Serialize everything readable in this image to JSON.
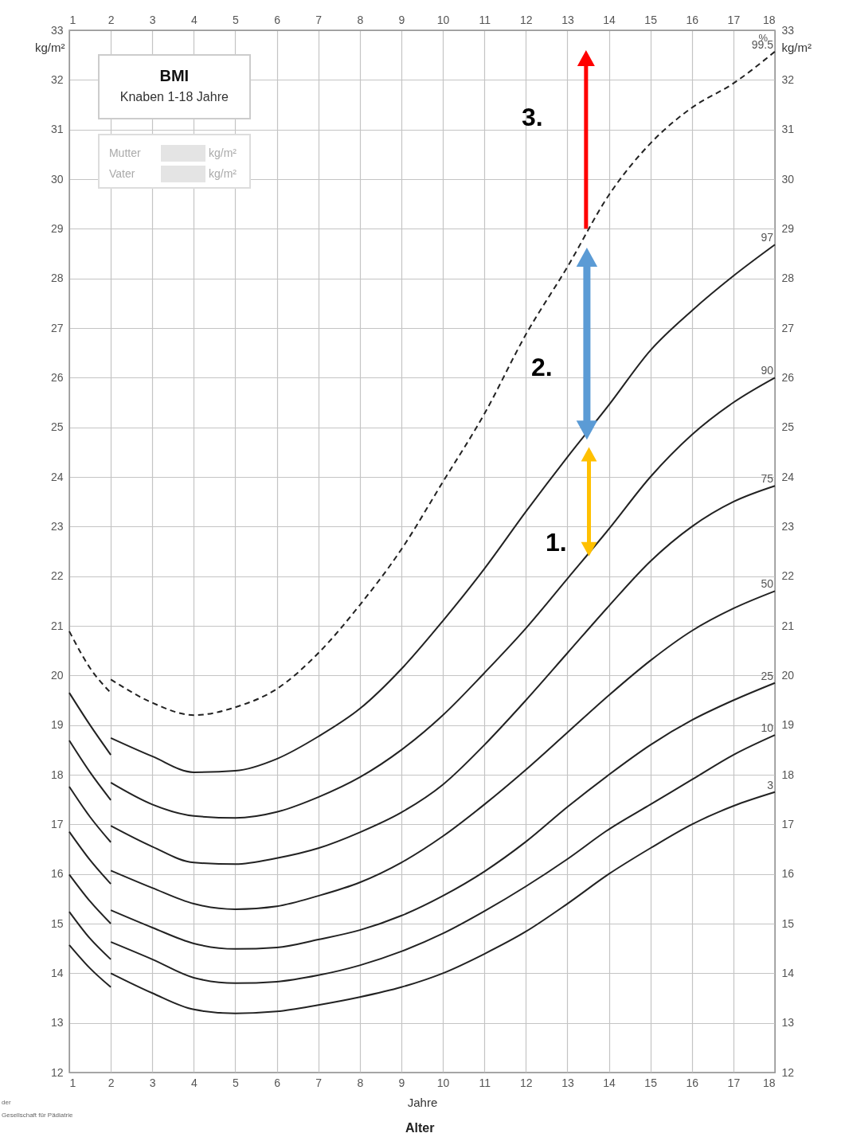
{
  "chart_data": {
    "type": "line",
    "title": "BMI",
    "subtitle": "Knaben 1-18 Jahre",
    "xlabel": "Jahre",
    "ylabel": "kg/m²",
    "y2label": "kg/m²",
    "x": [
      2,
      3,
      4,
      5,
      6,
      7,
      8,
      9,
      10,
      11,
      12,
      13,
      14,
      15,
      16,
      17,
      18
    ],
    "series": [
      {
        "name": "99.5",
        "color": "#222222",
        "line_style": "dashed",
        "values": [
          19.92,
          19.45,
          19.2,
          19.36,
          19.73,
          20.45,
          21.42,
          22.54,
          23.9,
          25.27,
          26.87,
          28.23,
          29.68,
          30.72,
          31.44,
          31.93,
          32.57
        ]
      },
      {
        "name": "97",
        "color": "#222222",
        "line_style": "solid",
        "values": [
          18.74,
          18.37,
          18.05,
          18.08,
          18.32,
          18.77,
          19.33,
          20.13,
          21.1,
          22.15,
          23.3,
          24.4,
          25.45,
          26.55,
          27.35,
          28.05,
          28.68
        ]
      },
      {
        "name": "90",
        "color": "#222222",
        "line_style": "solid",
        "values": [
          17.84,
          17.4,
          17.17,
          17.13,
          17.25,
          17.55,
          17.95,
          18.5,
          19.2,
          20.05,
          20.95,
          21.95,
          22.95,
          24.0,
          24.85,
          25.5,
          26.0
        ]
      },
      {
        "name": "75",
        "color": "#222222",
        "line_style": "solid",
        "values": [
          16.97,
          16.55,
          16.23,
          16.2,
          16.32,
          16.52,
          16.84,
          17.24,
          17.8,
          18.6,
          19.5,
          20.45,
          21.4,
          22.3,
          23.0,
          23.5,
          23.82
        ]
      },
      {
        "name": "50",
        "color": "#222222",
        "line_style": "solid",
        "values": [
          16.07,
          15.72,
          15.4,
          15.29,
          15.35,
          15.56,
          15.83,
          16.23,
          16.76,
          17.4,
          18.1,
          18.85,
          19.6,
          20.3,
          20.9,
          21.35,
          21.7
        ]
      },
      {
        "name": "25",
        "color": "#222222",
        "line_style": "solid",
        "values": [
          15.27,
          14.92,
          14.6,
          14.49,
          14.52,
          14.68,
          14.87,
          15.16,
          15.56,
          16.05,
          16.65,
          17.35,
          18.0,
          18.6,
          19.1,
          19.5,
          19.85
        ]
      },
      {
        "name": "10",
        "color": "#222222",
        "line_style": "solid",
        "values": [
          14.63,
          14.28,
          13.91,
          13.8,
          13.83,
          13.96,
          14.16,
          14.44,
          14.8,
          15.25,
          15.75,
          16.3,
          16.9,
          17.4,
          17.9,
          18.4,
          18.8
        ]
      },
      {
        "name": "3",
        "color": "#222222",
        "line_style": "solid",
        "values": [
          14.0,
          13.6,
          13.27,
          13.19,
          13.23,
          13.36,
          13.52,
          13.72,
          14.0,
          14.39,
          14.84,
          15.4,
          16.0,
          16.52,
          17.0,
          17.37,
          17.65
        ]
      },
      {
        "color": "#222222",
        "line_style": "dashed",
        "x": [
          1,
          1.5,
          2
        ],
        "values": [
          20.89,
          20.15,
          19.65
        ]
      },
      {
        "color": "#222222",
        "line_style": "solid",
        "x": [
          1,
          1.5,
          2
        ],
        "values": [
          19.65,
          19.0,
          18.4
        ]
      },
      {
        "color": "#222222",
        "line_style": "solid",
        "x": [
          1,
          1.5,
          2
        ],
        "values": [
          18.69,
          18.05,
          17.49
        ]
      },
      {
        "color": "#222222",
        "line_style": "solid",
        "x": [
          1,
          1.5,
          2
        ],
        "values": [
          17.76,
          17.15,
          16.64
        ]
      },
      {
        "color": "#222222",
        "line_style": "solid",
        "x": [
          1,
          1.5,
          2
        ],
        "values": [
          16.85,
          16.28,
          15.8
        ]
      },
      {
        "color": "#222222",
        "line_style": "solid",
        "x": [
          1,
          1.5,
          2
        ],
        "values": [
          15.99,
          15.45,
          15.0
        ]
      },
      {
        "color": "#222222",
        "line_style": "solid",
        "x": [
          1,
          1.5,
          2
        ],
        "values": [
          15.24,
          14.7,
          14.28
        ]
      },
      {
        "color": "#222222",
        "line_style": "solid",
        "x": [
          1,
          1.5,
          2
        ],
        "values": [
          14.57,
          14.1,
          13.72
        ]
      }
    ],
    "xlim": [
      1,
      18
    ],
    "ylim": [
      12,
      33
    ],
    "x2lim": [
      1,
      18
    ],
    "y2lim": [
      12,
      33
    ],
    "xticks": [
      1,
      2,
      3,
      4,
      5,
      6,
      7,
      8,
      9,
      10,
      11,
      12,
      13,
      14,
      15,
      16,
      17,
      18
    ],
    "x2ticks": [
      1,
      2,
      3,
      4,
      5,
      6,
      7,
      8,
      9,
      10,
      11,
      12,
      13,
      14,
      15,
      16,
      17,
      18
    ],
    "yticks": [
      12,
      13,
      14,
      15,
      16,
      17,
      18,
      19,
      20,
      21,
      22,
      23,
      24,
      25,
      26,
      27,
      28,
      29,
      30,
      31,
      32,
      33
    ],
    "y2ticks": [
      12,
      13,
      14,
      15,
      16,
      17,
      18,
      19,
      20,
      21,
      22,
      23,
      24,
      25,
      26,
      27,
      28,
      29,
      30,
      31,
      32,
      33
    ],
    "grid": true,
    "annotations": [
      "1.",
      "2.",
      "3.",
      "%",
      "Alter",
      "Mutter",
      "Vater",
      "kg/m²",
      "kg/m²",
      "der",
      "Gesellschaft für Pädiatrie"
    ]
  }
}
